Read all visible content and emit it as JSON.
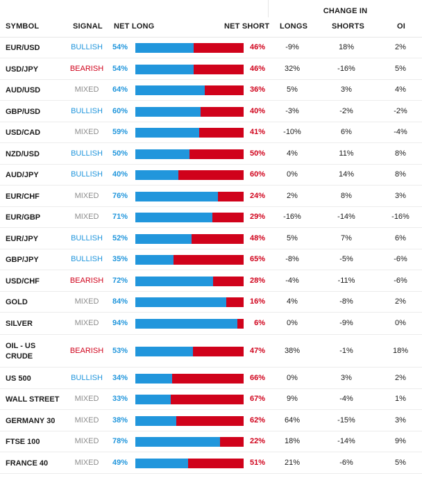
{
  "header": {
    "change_in": "CHANGE IN",
    "symbol": "SYMBOL",
    "signal": "SIGNAL",
    "net_long": "NET LONG",
    "net_short": "NET SHORT",
    "longs": "LONGS",
    "shorts": "SHORTS",
    "oi": "OI"
  },
  "colors": {
    "long": "#2196dc",
    "short": "#d0021b",
    "mixed": "#8c8c8c"
  },
  "rows": [
    {
      "symbol": "EUR/USD",
      "signal": "BULLISH",
      "net_long": "54%",
      "net_long_value": 54,
      "net_short": "46%",
      "longs": "-9%",
      "shorts": "18%",
      "oi": "2%"
    },
    {
      "symbol": "USD/JPY",
      "signal": "BEARISH",
      "net_long": "54%",
      "net_long_value": 54,
      "net_short": "46%",
      "longs": "32%",
      "shorts": "-16%",
      "oi": "5%"
    },
    {
      "symbol": "AUD/USD",
      "signal": "MIXED",
      "net_long": "64%",
      "net_long_value": 64,
      "net_short": "36%",
      "longs": "5%",
      "shorts": "3%",
      "oi": "4%"
    },
    {
      "symbol": "GBP/USD",
      "signal": "BULLISH",
      "net_long": "60%",
      "net_long_value": 60,
      "net_short": "40%",
      "longs": "-3%",
      "shorts": "-2%",
      "oi": "-2%"
    },
    {
      "symbol": "USD/CAD",
      "signal": "MIXED",
      "net_long": "59%",
      "net_long_value": 59,
      "net_short": "41%",
      "longs": "-10%",
      "shorts": "6%",
      "oi": "-4%"
    },
    {
      "symbol": "NZD/USD",
      "signal": "BULLISH",
      "net_long": "50%",
      "net_long_value": 50,
      "net_short": "50%",
      "longs": "4%",
      "shorts": "11%",
      "oi": "8%"
    },
    {
      "symbol": "AUD/JPY",
      "signal": "BULLISH",
      "net_long": "40%",
      "net_long_value": 40,
      "net_short": "60%",
      "longs": "0%",
      "shorts": "14%",
      "oi": "8%"
    },
    {
      "symbol": "EUR/CHF",
      "signal": "MIXED",
      "net_long": "76%",
      "net_long_value": 76,
      "net_short": "24%",
      "longs": "2%",
      "shorts": "8%",
      "oi": "3%"
    },
    {
      "symbol": "EUR/GBP",
      "signal": "MIXED",
      "net_long": "71%",
      "net_long_value": 71,
      "net_short": "29%",
      "longs": "-16%",
      "shorts": "-14%",
      "oi": "-16%"
    },
    {
      "symbol": "EUR/JPY",
      "signal": "BULLISH",
      "net_long": "52%",
      "net_long_value": 52,
      "net_short": "48%",
      "longs": "5%",
      "shorts": "7%",
      "oi": "6%"
    },
    {
      "symbol": "GBP/JPY",
      "signal": "BULLISH",
      "net_long": "35%",
      "net_long_value": 35,
      "net_short": "65%",
      "longs": "-8%",
      "shorts": "-5%",
      "oi": "-6%"
    },
    {
      "symbol": "USD/CHF",
      "signal": "BEARISH",
      "net_long": "72%",
      "net_long_value": 72,
      "net_short": "28%",
      "longs": "-4%",
      "shorts": "-11%",
      "oi": "-6%"
    },
    {
      "symbol": "GOLD",
      "signal": "MIXED",
      "net_long": "84%",
      "net_long_value": 84,
      "net_short": "16%",
      "longs": "4%",
      "shorts": "-8%",
      "oi": "2%"
    },
    {
      "symbol": "SILVER",
      "signal": "MIXED",
      "net_long": "94%",
      "net_long_value": 94,
      "net_short": "6%",
      "longs": "0%",
      "shorts": "-9%",
      "oi": "0%"
    },
    {
      "symbol": "OIL - US CRUDE",
      "signal": "BEARISH",
      "net_long": "53%",
      "net_long_value": 53,
      "net_short": "47%",
      "longs": "38%",
      "shorts": "-1%",
      "oi": "18%"
    },
    {
      "symbol": "US 500",
      "signal": "BULLISH",
      "net_long": "34%",
      "net_long_value": 34,
      "net_short": "66%",
      "longs": "0%",
      "shorts": "3%",
      "oi": "2%"
    },
    {
      "symbol": "WALL STREET",
      "signal": "MIXED",
      "net_long": "33%",
      "net_long_value": 33,
      "net_short": "67%",
      "longs": "9%",
      "shorts": "-4%",
      "oi": "1%"
    },
    {
      "symbol": "GERMANY 30",
      "signal": "MIXED",
      "net_long": "38%",
      "net_long_value": 38,
      "net_short": "62%",
      "longs": "64%",
      "shorts": "-15%",
      "oi": "3%"
    },
    {
      "symbol": "FTSE 100",
      "signal": "MIXED",
      "net_long": "78%",
      "net_long_value": 78,
      "net_short": "22%",
      "longs": "18%",
      "shorts": "-14%",
      "oi": "9%"
    },
    {
      "symbol": "FRANCE 40",
      "signal": "MIXED",
      "net_long": "49%",
      "net_long_value": 49,
      "net_short": "51%",
      "longs": "21%",
      "shorts": "-6%",
      "oi": "5%"
    }
  ]
}
